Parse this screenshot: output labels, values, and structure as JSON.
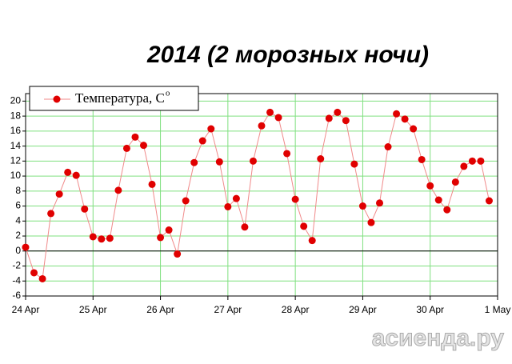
{
  "chart_data": {
    "type": "line",
    "title": "2014 (2 морозных ночи)",
    "series": [
      {
        "name": "Температура, C",
        "name_superscript": "o",
        "color": "#e00000",
        "line_color": "#f08a8a",
        "x": [
          0,
          0.125,
          0.25,
          0.375,
          0.5,
          0.625,
          0.75,
          0.875,
          1,
          1.125,
          1.25,
          1.375,
          1.5,
          1.625,
          1.75,
          1.875,
          2,
          2.125,
          2.25,
          2.375,
          2.5,
          2.625,
          2.75,
          2.875,
          3,
          3.125,
          3.25,
          3.375,
          3.5,
          3.625,
          3.75,
          3.875,
          4,
          4.125,
          4.25,
          4.375,
          4.5,
          4.625,
          4.75,
          4.875,
          5,
          5.125,
          5.25,
          5.375,
          5.5,
          5.625,
          5.75,
          5.875,
          6,
          6.125,
          6.25,
          6.375,
          6.5,
          6.625,
          6.75,
          6.875
        ],
        "values": [
          0.5,
          -2.9,
          -3.7,
          5.0,
          7.6,
          10.5,
          10.1,
          5.6,
          1.9,
          1.6,
          1.7,
          8.1,
          13.7,
          15.2,
          14.1,
          8.9,
          1.8,
          2.8,
          -0.4,
          6.7,
          11.8,
          14.7,
          16.3,
          11.9,
          5.9,
          7.0,
          3.2,
          12.0,
          16.7,
          18.5,
          17.8,
          13.0,
          6.9,
          3.3,
          1.4,
          12.3,
          17.7,
          18.5,
          17.4,
          11.6,
          6.0,
          3.8,
          6.4,
          13.9,
          18.3,
          17.6,
          16.3,
          12.2,
          8.7,
          6.8,
          5.5,
          9.2,
          11.3,
          12.0,
          12.0,
          6.7
        ]
      }
    ],
    "xlim": [
      0,
      7
    ],
    "xticks": [
      {
        "value": 0,
        "label": "24 Apr"
      },
      {
        "value": 1,
        "label": "25 Apr"
      },
      {
        "value": 2,
        "label": "26 Apr"
      },
      {
        "value": 3,
        "label": "27 Apr"
      },
      {
        "value": 4,
        "label": "28 Apr"
      },
      {
        "value": 5,
        "label": "29 Apr"
      },
      {
        "value": 6,
        "label": "30 Apr"
      },
      {
        "value": 7,
        "label": "1 May"
      }
    ],
    "ylim": [
      -6,
      21
    ],
    "yticks": [
      -6,
      -4,
      -2,
      0,
      2,
      4,
      6,
      8,
      10,
      12,
      14,
      16,
      18,
      20
    ],
    "grid": true,
    "grid_color": "#7fe07f",
    "legend": "top-left",
    "watermark": "асиенда.ру"
  }
}
